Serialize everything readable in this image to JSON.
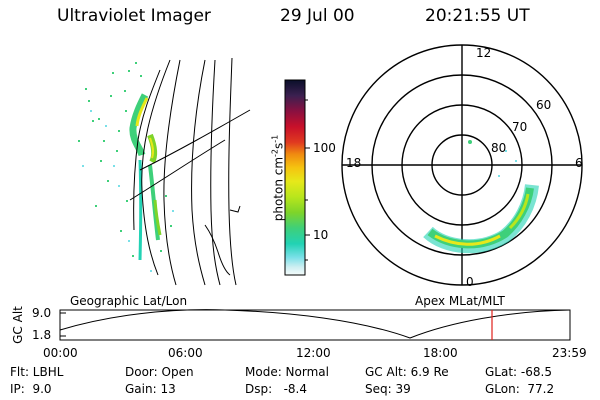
{
  "header": {
    "instrument": "Ultraviolet Imager",
    "date": "29 Jul 00",
    "time": "20:21:55 UT"
  },
  "colorbar": {
    "unit_label": "photon cm",
    "unit_exp1": "-2",
    "unit_s": "s",
    "unit_exp2": "-1",
    "tick_labels": [
      "100",
      "10"
    ],
    "colors": [
      "#0a0f2a",
      "#3b2050",
      "#8a1040",
      "#c8102a",
      "#e03a20",
      "#f08a10",
      "#f5c410",
      "#e6e81a",
      "#b8e61c",
      "#7ed42a",
      "#3ed07a",
      "#22d2b4",
      "#7ae0e8",
      "#cfeff2",
      "#f4fbfb"
    ]
  },
  "panels": {
    "left_label": "Geographic Lat/Lon",
    "right_label": "Apex MLat/MLT"
  },
  "polar": {
    "mlt_labels": [
      "12",
      "18",
      "6",
      "0"
    ],
    "lat_labels": [
      "60",
      "70",
      "80"
    ]
  },
  "altitude_plot": {
    "ylabel": "GC Alt",
    "ytick_labels": [
      "9.0",
      "1.8"
    ],
    "xtick_labels": [
      "00:00",
      "06:00",
      "12:00",
      "18:00",
      "23:59"
    ]
  },
  "footer": {
    "row1": {
      "filter": "Flt: LBHL",
      "door": "Door: Open",
      "mode": "Mode: Normal",
      "gc_alt": "GC Alt: 6.9 Re",
      "glat": "GLat: -68.5"
    },
    "row2": {
      "ip": "IP:  9.0",
      "gain": "Gain: 13",
      "dsp": "Dsp:   -8.4",
      "seq": "Seq: 39",
      "glon": "GLon:  77.2"
    }
  },
  "colors": {
    "marker": "#e0201a",
    "aurora_primary": "#3ed07a",
    "aurora_highlight": "#e6e81a"
  }
}
